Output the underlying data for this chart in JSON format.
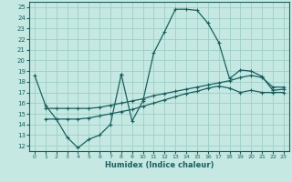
{
  "xlabel": "Humidex (Indice chaleur)",
  "bg_color": "#c5e8e2",
  "grid_color": "#9ecec7",
  "line_color": "#1a6060",
  "xlim": [
    -0.5,
    23.5
  ],
  "ylim": [
    11.5,
    25.5
  ],
  "yticks": [
    12,
    13,
    14,
    15,
    16,
    17,
    18,
    19,
    20,
    21,
    22,
    23,
    24,
    25
  ],
  "xticks": [
    0,
    1,
    2,
    3,
    4,
    5,
    6,
    7,
    8,
    9,
    10,
    11,
    12,
    13,
    14,
    15,
    16,
    17,
    18,
    19,
    20,
    21,
    22,
    23
  ],
  "line1_gaps": [
    [
      8,
      12
    ]
  ],
  "line1a_x": [
    0,
    1,
    2,
    3,
    4,
    5,
    6,
    7,
    8
  ],
  "line1a_y": [
    18.6,
    15.8,
    14.5,
    12.8,
    11.8,
    12.6,
    13.0,
    14.0,
    18.7
  ],
  "line1b_x": [
    8,
    9,
    10,
    11,
    12,
    13,
    14,
    15,
    16,
    17,
    18,
    19,
    20,
    21,
    22,
    23
  ],
  "line1b_y": [
    18.7,
    14.3,
    16.2,
    20.7,
    22.7,
    24.8,
    24.8,
    24.7,
    23.5,
    21.7,
    18.3,
    19.1,
    19.0,
    18.5,
    17.2,
    17.3
  ],
  "line2_x": [
    1,
    2,
    3,
    4,
    5,
    6,
    7,
    8,
    9,
    10,
    11,
    12,
    13,
    14,
    15,
    16,
    17,
    18,
    19,
    20,
    21,
    22,
    23
  ],
  "line2_y": [
    15.5,
    15.5,
    15.5,
    15.5,
    15.5,
    15.6,
    15.8,
    16.0,
    16.2,
    16.4,
    16.7,
    16.9,
    17.1,
    17.3,
    17.5,
    17.7,
    17.9,
    18.1,
    18.4,
    18.6,
    18.4,
    17.5,
    17.5
  ],
  "line3_x": [
    1,
    2,
    3,
    4,
    5,
    6,
    7,
    8,
    9,
    10,
    11,
    12,
    13,
    14,
    15,
    16,
    17,
    18,
    19,
    20,
    21,
    22,
    23
  ],
  "line3_y": [
    14.5,
    14.5,
    14.5,
    14.5,
    14.6,
    14.8,
    15.0,
    15.2,
    15.4,
    15.7,
    16.0,
    16.3,
    16.6,
    16.9,
    17.1,
    17.4,
    17.6,
    17.4,
    17.0,
    17.2,
    17.0,
    17.0,
    17.0
  ]
}
